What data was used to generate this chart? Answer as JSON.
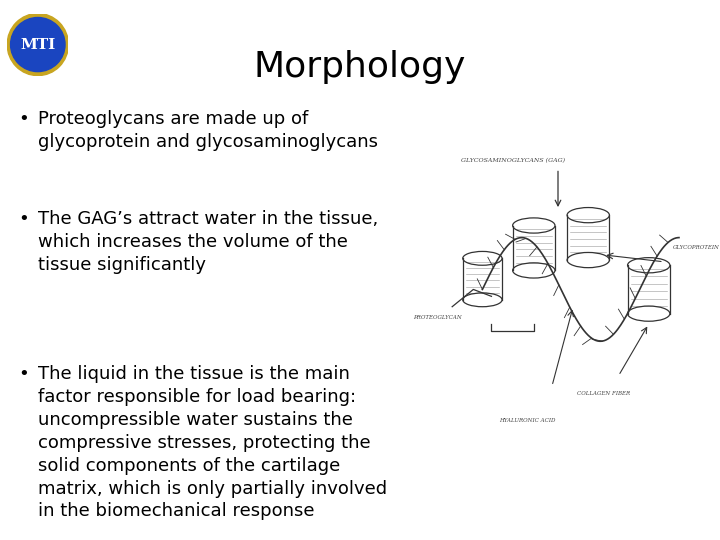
{
  "title": "Morphology",
  "title_fontsize": 26,
  "background_color": "#ffffff",
  "text_color": "#000000",
  "bullet_points": [
    "Proteoglycans are made up of\nglycoprotein and glycosaminoglycans",
    "The GAG’s attract water in the tissue,\nwhich increases the volume of the\ntissue significantly",
    "The liquid in the tissue is the main\nfactor responsible for load bearing:\nuncompressible water sustains the\ncompressive stresses, protecting the\nsolid components of the cartilage\nmatrix, which is only partially involved\nin the biomechanical response"
  ],
  "bullet_fontsize": 13,
  "logo_ellipse_color": "#1a45c0",
  "logo_border_color": "#c8a520",
  "logo_text": "MTI",
  "logo_text_color": "#ffffff",
  "sketch_color": "#333333",
  "sketch_label_color": "#444444"
}
